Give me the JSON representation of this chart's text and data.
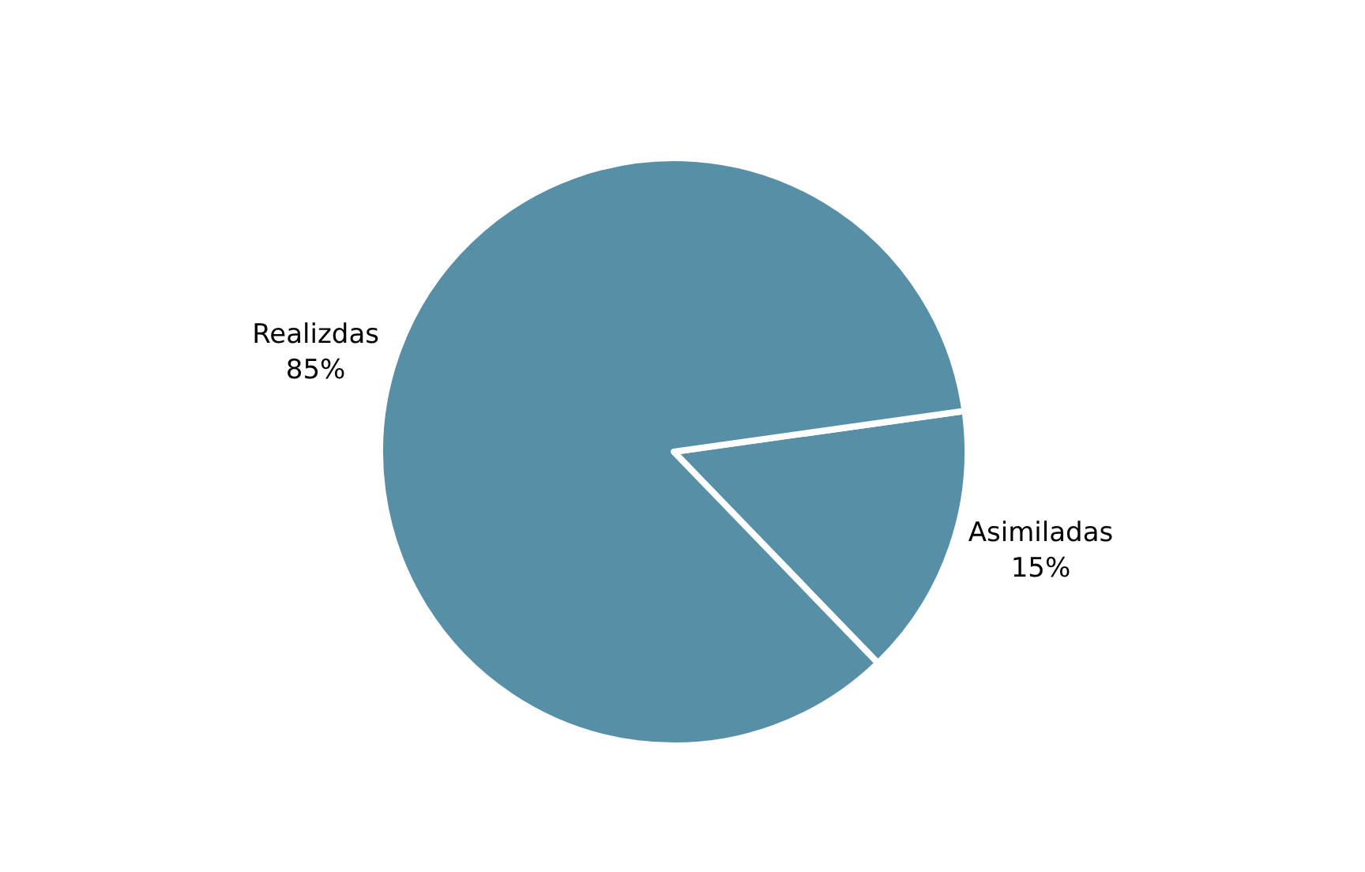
{
  "chart_data": {
    "type": "pie",
    "categories": [
      "Asimiladas",
      "Realizdas"
    ],
    "values": [
      15,
      85
    ],
    "colors": [
      "#568fa6",
      "#568fa6"
    ],
    "value_labels": [
      "15%",
      "85%"
    ],
    "legend": false
  }
}
